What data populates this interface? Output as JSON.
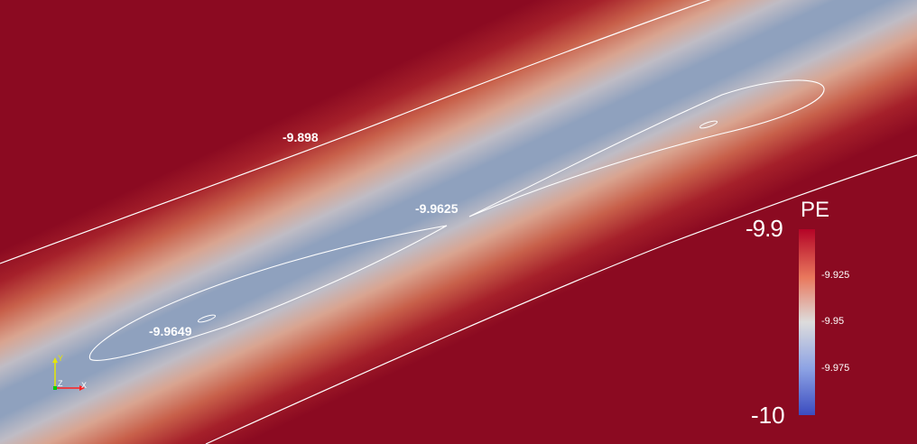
{
  "contour_labels": {
    "outer": "-9.898",
    "saddle": "-9.9625",
    "minimum": "-9.9649"
  },
  "colorbar": {
    "title": "PE",
    "max_label": "-9.9",
    "min_label": "-10",
    "ticks": [
      "-9.925",
      "-9.95",
      "-9.975"
    ],
    "colors": [
      "#b40426",
      "#e9785d",
      "#dddcdc",
      "#8da3e4",
      "#3b4cc0"
    ]
  },
  "axes": {
    "x": "X",
    "y": "Y",
    "z": "Z",
    "colors": {
      "x": "#ff2020",
      "y": "#e6e600",
      "z": "#00cc00"
    }
  },
  "field_colors": {
    "background": "#8b0a21",
    "valley": "#8da0bd"
  }
}
